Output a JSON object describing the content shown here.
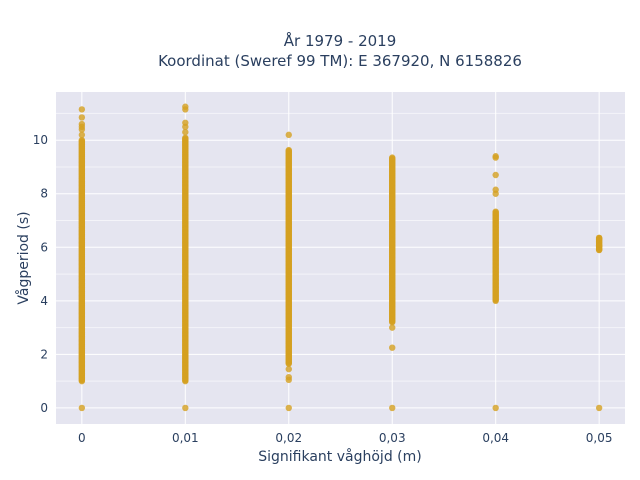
{
  "chart_data": {
    "type": "scatter",
    "title_line1": "År 1979 - 2019",
    "title_line2": "Koordinat (Sweref 99 TM): E 367920, N 6158826",
    "xlabel": "Signifikant våghöjd (m)",
    "ylabel": "Vågperiod (s)",
    "xlim": [
      -0.0025,
      0.0525
    ],
    "ylim": [
      -0.6,
      11.8
    ],
    "x_ticks": [
      0,
      0.01,
      0.02,
      0.03,
      0.04,
      0.05
    ],
    "x_tick_labels": [
      "0",
      "0,01",
      "0,02",
      "0,03",
      "0,04",
      "0,05"
    ],
    "y_ticks": [
      0,
      2,
      4,
      6,
      8,
      10
    ],
    "y_tick_labels": [
      "0",
      "2",
      "4",
      "6",
      "8",
      "10"
    ],
    "grid": true,
    "legend": "none",
    "marker_color": "#d4a020",
    "background_color": "#e5e5f0",
    "series": [
      {
        "values_by_x": [
          {
            "x": 0,
            "range": [
              1.0,
              10.0
            ],
            "points": [
              0,
              10.2,
              10.4,
              10.5,
              10.6,
              10.85,
              11.15
            ]
          },
          {
            "x": 0.01,
            "range": [
              1.0,
              10.1
            ],
            "points": [
              0,
              10.3,
              10.5,
              10.65,
              11.15,
              11.25
            ]
          },
          {
            "x": 0.02,
            "range": [
              1.65,
              9.65
            ],
            "points": [
              0,
              1.05,
              1.15,
              1.45,
              10.2
            ]
          },
          {
            "x": 0.03,
            "range": [
              3.2,
              9.35
            ],
            "points": [
              0,
              2.25,
              3.0
            ]
          },
          {
            "x": 0.04,
            "range": [
              4.0,
              7.35
            ],
            "points": [
              0,
              8.0,
              8.15,
              8.7,
              9.35,
              9.4
            ]
          },
          {
            "x": 0.05,
            "range": [
              5.9,
              6.35
            ],
            "points": [
              0,
              5.9,
              6.05,
              6.3,
              6.35
            ]
          }
        ]
      }
    ]
  }
}
